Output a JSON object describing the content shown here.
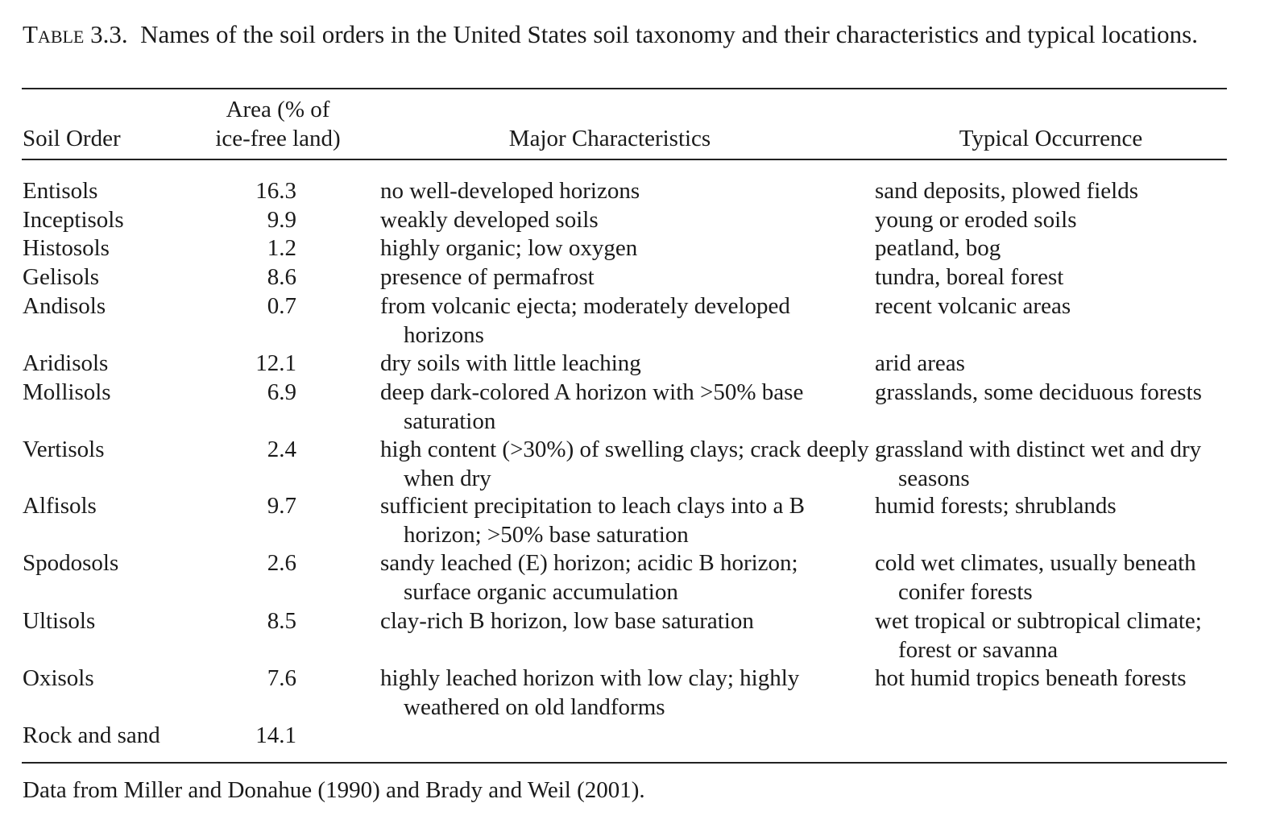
{
  "caption": {
    "label": "Table 3.3.",
    "text": "Names of the soil orders in the United States soil taxonomy and their characteristics and typical locations."
  },
  "headers": {
    "soil_order": "Soil Order",
    "area_line1": "Area (% of",
    "area_line2": "ice-free land)",
    "characteristics": "Major Characteristics",
    "occurrence": "Typical Occurrence"
  },
  "rows": [
    {
      "order": "Entisols",
      "area": "16.3",
      "characteristics": "no well-developed horizons",
      "occurrence": "sand deposits, plowed fields"
    },
    {
      "order": "Inceptisols",
      "area": "9.9",
      "characteristics": "weakly developed soils",
      "occurrence": "young or eroded soils"
    },
    {
      "order": "Histosols",
      "area": "1.2",
      "characteristics": "highly organic; low oxygen",
      "occurrence": "peatland, bog"
    },
    {
      "order": "Gelisols",
      "area": "8.6",
      "characteristics": "presence of permafrost",
      "occurrence": "tundra, boreal forest"
    },
    {
      "order": "Andisols",
      "area": "0.7",
      "characteristics": "from volcanic ejecta; moderately developed horizons",
      "occurrence": "recent volcanic areas"
    },
    {
      "order": "Aridisols",
      "area": "12.1",
      "characteristics": "dry soils with little leaching",
      "occurrence": "arid areas"
    },
    {
      "order": "Mollisols",
      "area": "6.9",
      "characteristics": "deep dark-colored A horizon with >50% base saturation",
      "occurrence": "grasslands, some deciduous forests"
    },
    {
      "order": "Vertisols",
      "area": "2.4",
      "characteristics": "high content (>30%) of swelling clays; crack deeply when dry",
      "occurrence": "grassland with distinct wet and dry seasons"
    },
    {
      "order": "Alfisols",
      "area": "9.7",
      "characteristics": "sufficient precipitation to leach clays into a B horizon; >50% base saturation",
      "occurrence": "humid forests; shrublands"
    },
    {
      "order": "Spodosols",
      "area": "2.6",
      "characteristics": "sandy leached (E) horizon; acidic B horizon; surface organic accumulation",
      "occurrence": "cold wet climates, usually beneath conifer forests"
    },
    {
      "order": "Ultisols",
      "area": "8.5",
      "characteristics": "clay-rich B horizon, low base saturation",
      "occurrence": "wet tropical or subtropical climate; forest or savanna"
    },
    {
      "order": "Oxisols",
      "area": "7.6",
      "characteristics": "highly leached horizon with low clay; highly weathered on old landforms",
      "occurrence": "hot humid tropics beneath forests"
    },
    {
      "order": "Rock and sand",
      "area": "14.1",
      "characteristics": "",
      "occurrence": ""
    }
  ],
  "footnote": "Data from Miller and Donahue (1990) and Brady and Weil (2001)."
}
